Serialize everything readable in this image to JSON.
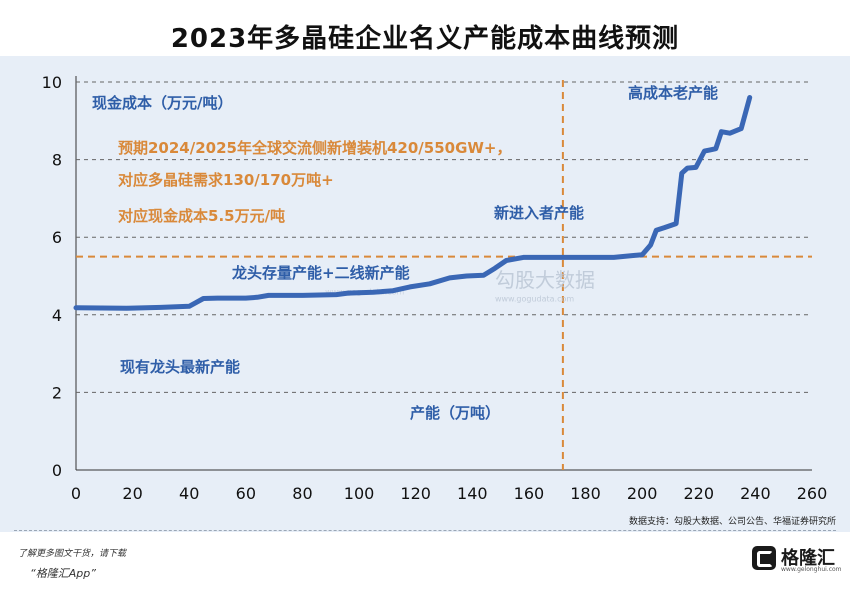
{
  "title": "2023年多晶硅企业名义产能成本曲线预测",
  "chart_data": {
    "type": "line",
    "ylabel": "现金成本（万元/吨）",
    "xlabel": "产能（万吨）",
    "xlim": [
      0,
      260
    ],
    "ylim": [
      0,
      10
    ],
    "x_ticks": [
      0,
      20,
      40,
      60,
      80,
      100,
      120,
      140,
      160,
      180,
      200,
      220,
      240,
      260
    ],
    "y_ticks": [
      0,
      2,
      4,
      6,
      8,
      10
    ],
    "grid": "horizontal dashed",
    "series": [
      {
        "color": "#3a67b5",
        "points": [
          [
            0,
            4.18
          ],
          [
            18,
            4.17
          ],
          [
            30,
            4.19
          ],
          [
            40,
            4.22
          ],
          [
            42,
            4.3
          ],
          [
            45,
            4.42
          ],
          [
            50,
            4.43
          ],
          [
            60,
            4.43
          ],
          [
            64,
            4.45
          ],
          [
            68,
            4.5
          ],
          [
            80,
            4.5
          ],
          [
            92,
            4.52
          ],
          [
            96,
            4.56
          ],
          [
            105,
            4.58
          ],
          [
            112,
            4.62
          ],
          [
            118,
            4.72
          ],
          [
            125,
            4.8
          ],
          [
            132,
            4.95
          ],
          [
            138,
            5.0
          ],
          [
            144,
            5.02
          ],
          [
            148,
            5.2
          ],
          [
            152,
            5.4
          ],
          [
            158,
            5.48
          ],
          [
            170,
            5.48
          ],
          [
            190,
            5.48
          ],
          [
            200,
            5.55
          ],
          [
            203,
            5.8
          ],
          [
            205,
            6.18
          ],
          [
            208,
            6.25
          ],
          [
            212,
            6.35
          ],
          [
            214,
            7.65
          ],
          [
            216,
            7.78
          ],
          [
            219,
            7.8
          ],
          [
            222,
            8.22
          ],
          [
            224,
            8.25
          ],
          [
            226,
            8.28
          ],
          [
            228,
            8.72
          ],
          [
            231,
            8.68
          ],
          [
            235,
            8.8
          ],
          [
            238,
            9.6
          ]
        ]
      }
    ],
    "reference_lines": [
      {
        "orientation": "horizontal",
        "value": 5.5,
        "color": "#d9893a"
      },
      {
        "orientation": "vertical",
        "value": 172,
        "color": "#d9893a"
      }
    ],
    "annotations": {
      "unit_label": "现金成本（万元/吨）",
      "forecast_line1": "预期2024/2025年全球交流侧新增装机420/550GW+，",
      "forecast_line2": "对应多晶硅需求130/170万吨+",
      "forecast_line3": "对应现金成本5.5万元/吨",
      "high_cost": "高成本老产能",
      "new_entrant": "新进入者产能",
      "leader_plus": "龙头存量产能+二线新产能",
      "leader_new": "现有龙头最新产能",
      "capacity_unit": "产能（万吨）"
    },
    "watermark": {
      "cn": "勾股大数据",
      "url": "www.gogudata.com",
      "small": "www.gogudata.com"
    }
  },
  "source": "数据支持：勾股大数据、公司公告、华福证券研究所",
  "footer": {
    "line1": "了解更多图文干货，请下载",
    "line2": "“格隆汇App”",
    "brand_name": "格隆汇",
    "brand_url": "www.gelonghui.com"
  },
  "colors": {
    "line": "#3a67b5",
    "reference": "#d9893a",
    "annotation_blue": "#2f5ea8",
    "annotation_orange": "#d9893a",
    "background": "#e7eef7"
  }
}
